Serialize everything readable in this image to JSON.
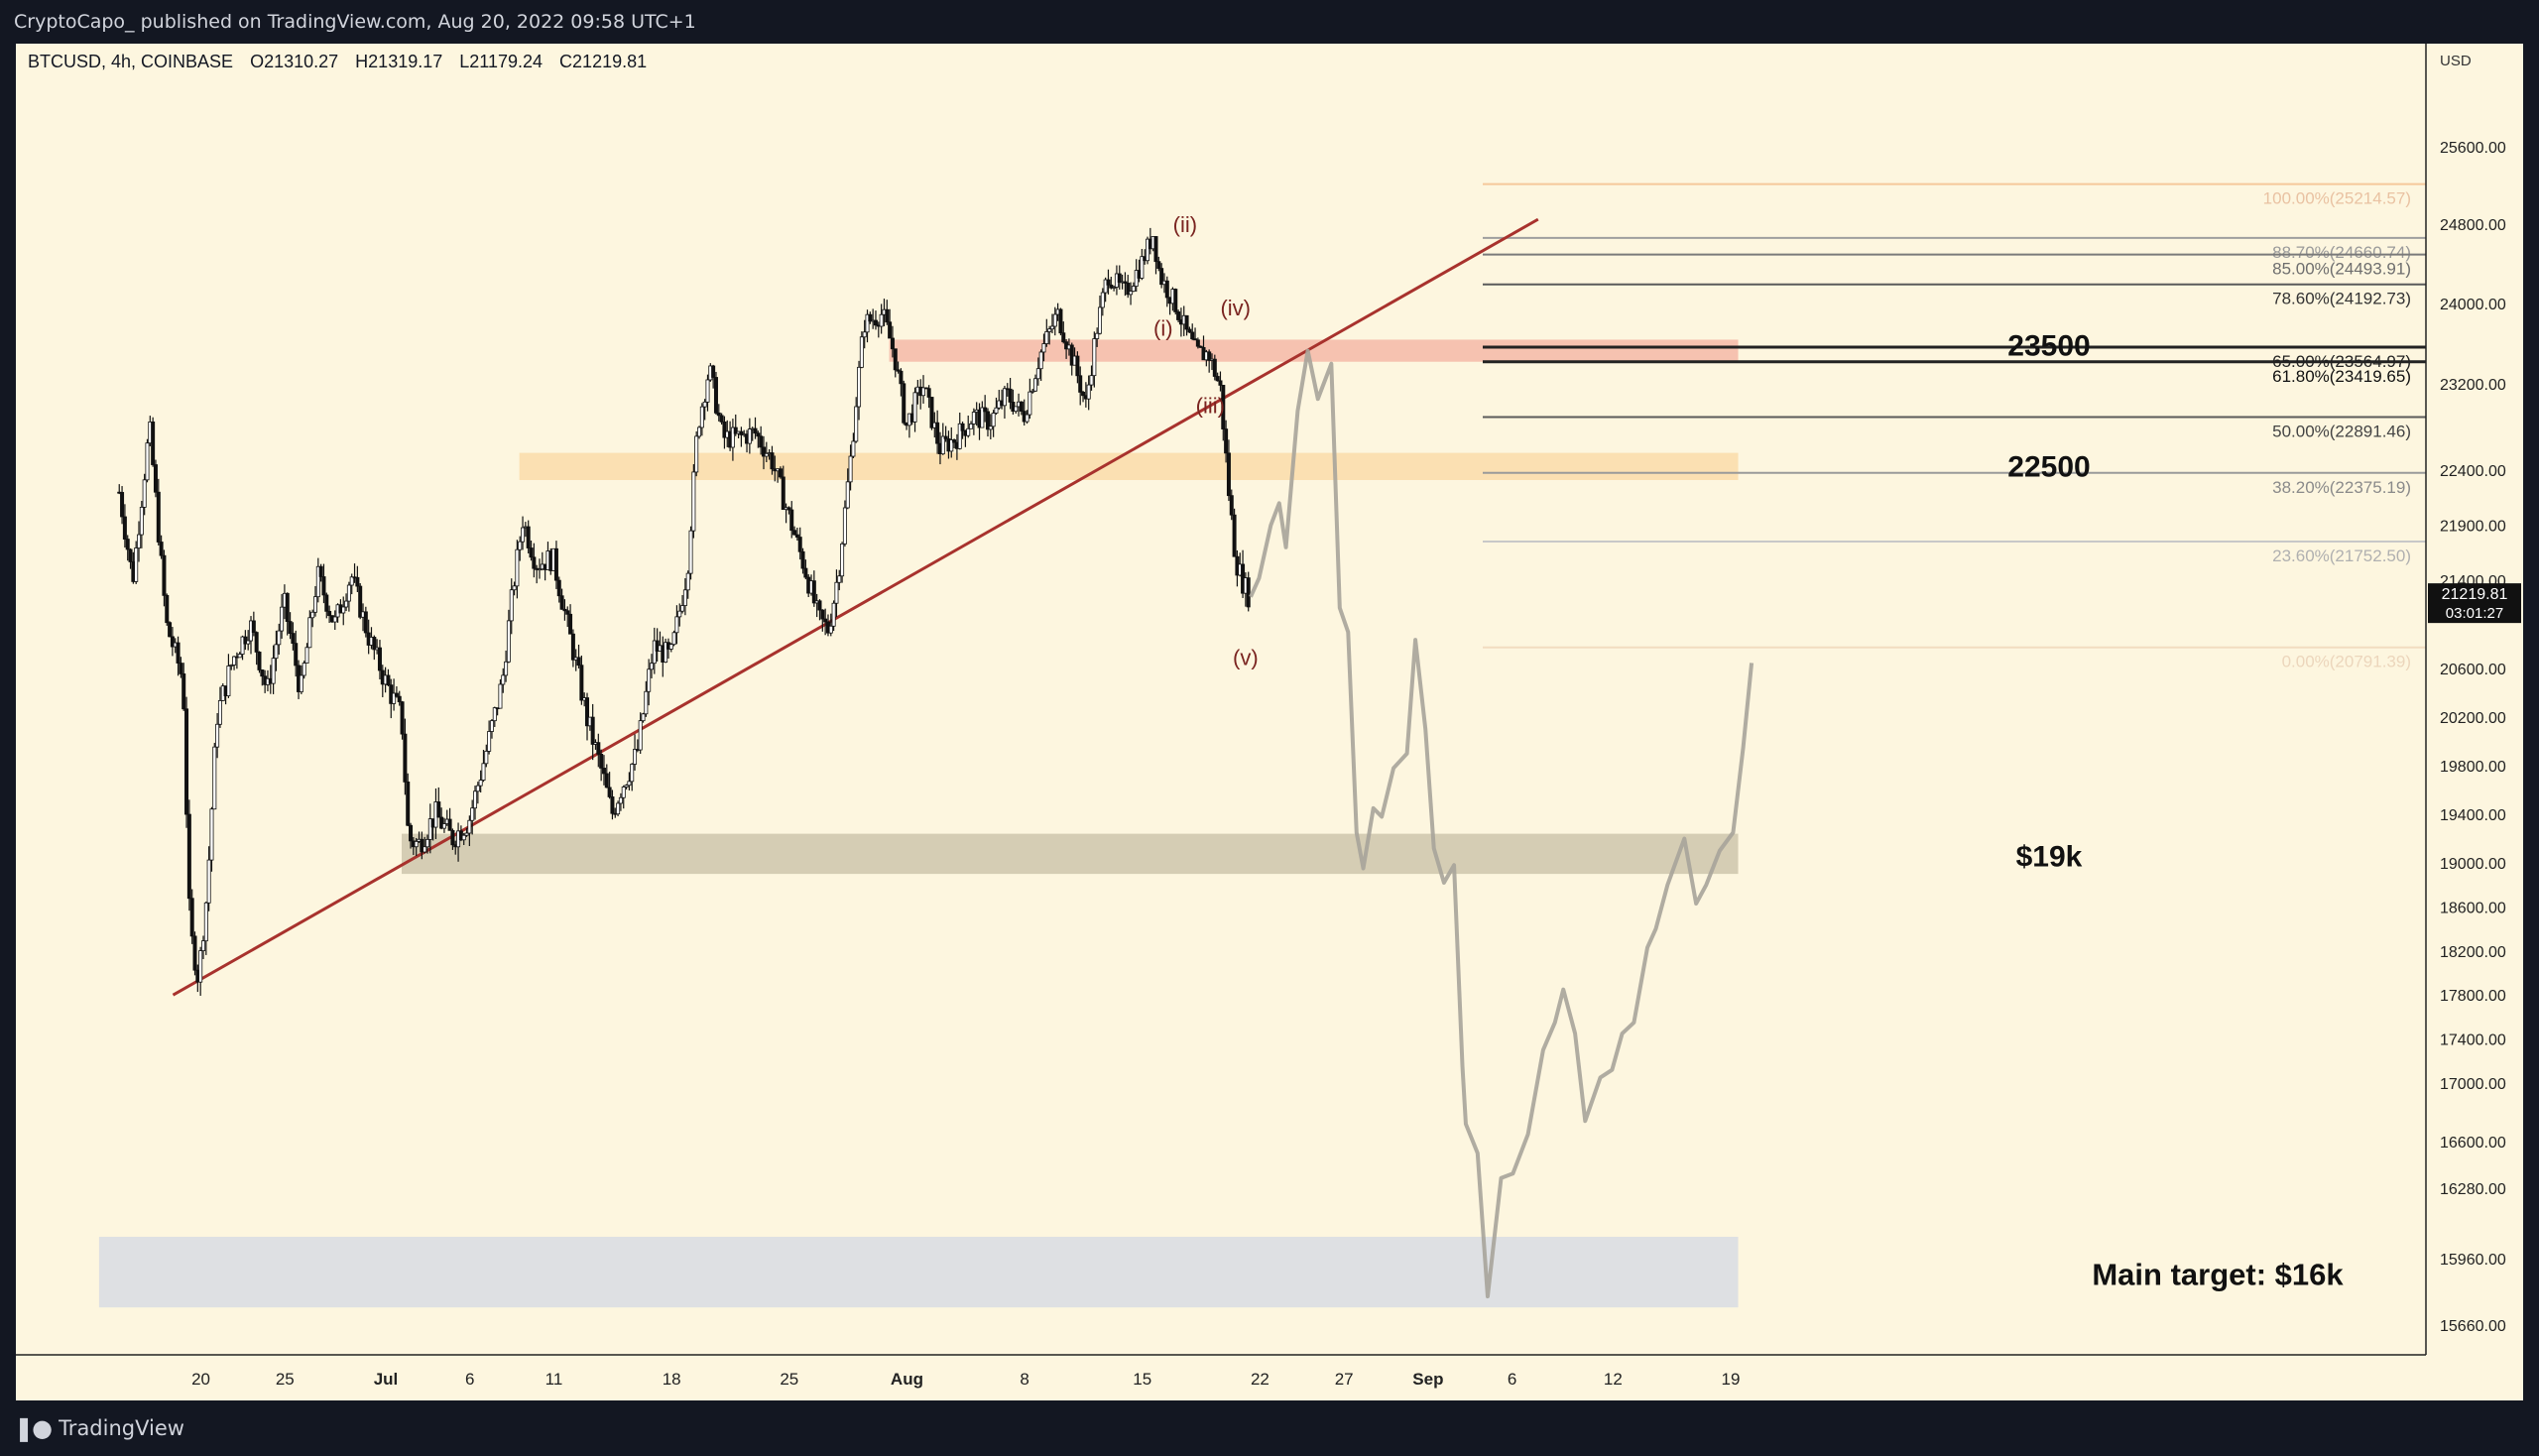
{
  "header": {
    "publisher": "CryptoCapo_ published on TradingView.com, Aug 20, 2022 09:58 UTC+1"
  },
  "legend": {
    "symbol": "BTCUSD, 4h, COINBASE",
    "open": "O21310.27",
    "high": "H21319.17",
    "low": "L21179.24",
    "close": "C21219.81"
  },
  "footer": {
    "brand": "TradingView"
  },
  "chart_data": {
    "type": "candlestick",
    "timeframe": "4h",
    "currency_label": "USD",
    "price_ticks": [
      25600,
      24800,
      24000,
      23200,
      22400,
      21900,
      21400,
      20600,
      20200,
      19800,
      19400,
      19000,
      18600,
      18200,
      17800,
      17400,
      17000,
      16600,
      16280,
      15960,
      15660
    ],
    "date_ticks": [
      {
        "label": "20",
        "day": -11
      },
      {
        "label": "25",
        "day": -6
      },
      {
        "label": "Jul",
        "day": 0
      },
      {
        "label": "6",
        "day": 5
      },
      {
        "label": "11",
        "day": 10
      },
      {
        "label": "18",
        "day": 17
      },
      {
        "label": "25",
        "day": 24
      },
      {
        "label": "Aug",
        "day": 31
      },
      {
        "label": "8",
        "day": 38
      },
      {
        "label": "15",
        "day": 45
      },
      {
        "label": "22",
        "day": 52
      },
      {
        "label": "27",
        "day": 57
      },
      {
        "label": "Sep",
        "day": 62
      },
      {
        "label": "6",
        "day": 67
      },
      {
        "label": "12",
        "day": 73
      },
      {
        "label": "19",
        "day": 80
      }
    ],
    "last_price": {
      "value": 21219.81,
      "label": "21219.81",
      "countdown": "03:01:27"
    },
    "price_path": [
      [
        -16.8,
        22200
      ],
      [
        -16,
        21400
      ],
      [
        -15,
        22800
      ],
      [
        -14,
        21000
      ],
      [
        -13,
        20500
      ],
      [
        -12.6,
        18400
      ],
      [
        -12.1,
        17950
      ],
      [
        -11.6,
        18700
      ],
      [
        -11,
        20200
      ],
      [
        -10,
        20700
      ],
      [
        -9,
        21000
      ],
      [
        -8,
        20400
      ],
      [
        -7,
        21200
      ],
      [
        -6,
        20400
      ],
      [
        -5,
        21450
      ],
      [
        -4,
        21000
      ],
      [
        -3,
        21450
      ],
      [
        -2,
        20900
      ],
      [
        -1,
        20500
      ],
      [
        0,
        20200
      ],
      [
        0.4,
        19200
      ],
      [
        1,
        19150
      ],
      [
        2,
        19400
      ],
      [
        3,
        19200
      ],
      [
        4,
        19350
      ],
      [
        5,
        19900
      ],
      [
        6,
        20500
      ],
      [
        6.6,
        21300
      ],
      [
        7.2,
        21950
      ],
      [
        8,
        21550
      ],
      [
        9,
        21600
      ],
      [
        10,
        20900
      ],
      [
        11,
        20200
      ],
      [
        12,
        19700
      ],
      [
        12.5,
        19400
      ],
      [
        13,
        19600
      ],
      [
        14,
        19900
      ],
      [
        15,
        20800
      ],
      [
        16,
        20700
      ],
      [
        17,
        21500
      ],
      [
        17.6,
        22800
      ],
      [
        18.3,
        23350
      ],
      [
        19.1,
        22700
      ],
      [
        20,
        22700
      ],
      [
        21,
        22750
      ],
      [
        22,
        22500
      ],
      [
        23,
        22000
      ],
      [
        24,
        21500
      ],
      [
        24.8,
        21050
      ],
      [
        25.4,
        20950
      ],
      [
        26,
        21500
      ],
      [
        26.7,
        22500
      ],
      [
        27.5,
        23800
      ],
      [
        28.6,
        23900
      ],
      [
        29.3,
        23500
      ],
      [
        30,
        22800
      ],
      [
        31,
        23200
      ],
      [
        32,
        22600
      ],
      [
        33,
        22700
      ],
      [
        34,
        22900
      ],
      [
        35,
        22850
      ],
      [
        36,
        23100
      ],
      [
        37,
        22900
      ],
      [
        38,
        23500
      ],
      [
        39,
        23900
      ],
      [
        40,
        23400
      ],
      [
        40.7,
        23000
      ],
      [
        41.3,
        23700
      ],
      [
        42,
        24300
      ],
      [
        43,
        24100
      ],
      [
        44,
        24400
      ],
      [
        44.7,
        24700
      ],
      [
        45.1,
        24280
      ],
      [
        46,
        24000
      ],
      [
        46.7,
        23700
      ],
      [
        47.3,
        23500
      ],
      [
        48,
        23500
      ],
      [
        48.7,
        23150
      ],
      [
        49.2,
        22200
      ],
      [
        49.6,
        21600
      ],
      [
        50,
        21400
      ],
      [
        50.5,
        21220
      ]
    ],
    "fib_levels": [
      {
        "label": "100.00%(25214.57)",
        "price": 25214.57,
        "color": "#f5c89a",
        "text_color": "#e9c2a2"
      },
      {
        "label": "88.70%(24660.74)",
        "price": 24660.74,
        "color": "#9e9e9e",
        "text_color": "#9a9a9a"
      },
      {
        "label": "85.00%(24493.91)",
        "price": 24493.91,
        "color": "#7a7a7a",
        "text_color": "#6e6e6e"
      },
      {
        "label": "78.60%(24192.73)",
        "price": 24192.73,
        "color": "#5a5a5a",
        "text_color": "#333333"
      },
      {
        "label": "65.00%(23564.97)",
        "price": 23564.97,
        "color": "#222222",
        "text_color": "#222222"
      },
      {
        "label": "61.80%(23419.65)",
        "price": 23419.65,
        "color": "#222222",
        "text_color": "#111111"
      },
      {
        "label": "50.00%(22891.46)",
        "price": 22891.46,
        "color": "#5a5a5a",
        "text_color": "#444444"
      },
      {
        "label": "38.20%(22375.19)",
        "price": 22375.19,
        "color": "#9a9a9a",
        "text_color": "#8a8a8a"
      },
      {
        "label": "23.60%(21752.50)",
        "price": 21752.5,
        "color": "#c8c8c8",
        "text_color": "#b0b0b0"
      },
      {
        "label": "0.00%(20791.39)",
        "price": 20791.39,
        "color": "#f2dcc0",
        "text_color": "#ecd6bc"
      }
    ],
    "zones": [
      {
        "label": "23500",
        "from_day": 29,
        "to_day": 79.5,
        "low": 23420,
        "high": 23640,
        "color": "#f5b8a8"
      },
      {
        "label": "22500",
        "from_day": 7,
        "to_day": 79.5,
        "low": 22310,
        "high": 22560,
        "color": "#fadcaa"
      },
      {
        "label": "$19k",
        "from_day": 0,
        "to_day": 79.5,
        "low": 18900,
        "high": 19240,
        "color": "#cec6ad"
      },
      {
        "label": "Main target: $16k",
        "from_day": -18,
        "to_day": 79.5,
        "low": 15740,
        "high": 16060,
        "color": "#d8dce4"
      }
    ],
    "trendline": {
      "from": [
        -13.6,
        17800
      ],
      "to": [
        67.6,
        24850
      ],
      "color": "#a8322d"
    },
    "wave_labels": [
      {
        "label": "(ii)",
        "day": 46.6,
        "price": 24720
      },
      {
        "label": "(i)",
        "day": 45.3,
        "price": 23680
      },
      {
        "label": "(iv)",
        "day": 49.6,
        "price": 23880
      },
      {
        "label": "(iii)",
        "day": 48.1,
        "price": 22930
      },
      {
        "label": "(v)",
        "day": 50.2,
        "price": 20630
      }
    ],
    "projection": [
      [
        50.5,
        21250
      ],
      [
        51,
        21420
      ],
      [
        51.7,
        21900
      ],
      [
        52.2,
        22100
      ],
      [
        52.6,
        21700
      ],
      [
        53.3,
        22950
      ],
      [
        53.9,
        23530
      ],
      [
        54.5,
        23060
      ],
      [
        55.3,
        23400
      ],
      [
        55.8,
        21150
      ],
      [
        56.3,
        20930
      ],
      [
        56.8,
        19250
      ],
      [
        57.2,
        18950
      ],
      [
        57.8,
        19450
      ],
      [
        58.3,
        19380
      ],
      [
        59,
        19780
      ],
      [
        59.8,
        19900
      ],
      [
        60.3,
        20860
      ],
      [
        60.9,
        20100
      ],
      [
        61.4,
        19120
      ],
      [
        62,
        18820
      ],
      [
        62.6,
        18980
      ],
      [
        63.1,
        17150
      ],
      [
        63.3,
        16720
      ],
      [
        64.0,
        16520
      ],
      [
        64.6,
        15790
      ],
      [
        65.4,
        16350
      ],
      [
        66.1,
        16380
      ],
      [
        67,
        16650
      ],
      [
        67.9,
        17300
      ],
      [
        68.6,
        17550
      ],
      [
        69.1,
        17850
      ],
      [
        69.8,
        17450
      ],
      [
        70.4,
        16740
      ],
      [
        71.3,
        17050
      ],
      [
        72,
        17120
      ],
      [
        72.6,
        17450
      ],
      [
        73.3,
        17550
      ],
      [
        74.1,
        18230
      ],
      [
        74.6,
        18400
      ],
      [
        75.3,
        18800
      ],
      [
        76.3,
        19200
      ],
      [
        77,
        18630
      ],
      [
        77.6,
        18800
      ],
      [
        78.4,
        19100
      ],
      [
        79.2,
        19250
      ],
      [
        79.8,
        19950
      ],
      [
        80.3,
        20650
      ]
    ],
    "colors": {
      "background": "#fdf6df",
      "candle_up": "#ffffff",
      "candle_down": "#111111",
      "projection": "#a7a49a"
    }
  }
}
